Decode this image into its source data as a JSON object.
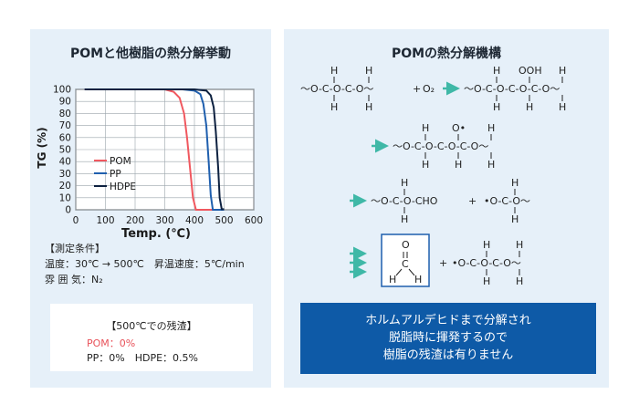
{
  "left": {
    "title": "POMと他樹脂の熱分解挙動",
    "conditions_header": "【測定条件】",
    "condition_temp": "温度：30℃ → 500℃　昇温速度：5℃/min",
    "condition_atm": "雰 囲 気：N₂",
    "residue": {
      "title": "【500℃での残渣】",
      "pom": "POM：0%",
      "others": "PP：0%　HDPE：0.5%"
    }
  },
  "chart_data": {
    "type": "line",
    "xlabel": "Temp. (℃)",
    "ylabel": "TG (%)",
    "xlim": [
      0,
      600
    ],
    "ylim": [
      0,
      100
    ],
    "x_ticks": [
      "0",
      "100",
      "200",
      "300",
      "400",
      "500",
      "600"
    ],
    "y_ticks": [
      "0",
      "10",
      "20",
      "30",
      "40",
      "50",
      "60",
      "70",
      "80",
      "90",
      "100"
    ],
    "grid": true,
    "legend_position": "center-left",
    "series": [
      {
        "name": "POM",
        "color": "#f0585f",
        "x": [
          30,
          300,
          330,
          350,
          365,
          375,
          385,
          395,
          405,
          500
        ],
        "y": [
          100,
          100,
          98,
          93,
          80,
          60,
          35,
          10,
          0,
          0
        ]
      },
      {
        "name": "PP",
        "color": "#1f5fae",
        "x": [
          30,
          360,
          400,
          420,
          430,
          440,
          448,
          455,
          462,
          500
        ],
        "y": [
          100,
          100,
          99,
          96,
          88,
          70,
          40,
          12,
          0,
          0
        ]
      },
      {
        "name": "HDPE",
        "color": "#0d2140",
        "x": [
          30,
          400,
          440,
          455,
          465,
          472,
          480,
          485,
          492,
          500
        ],
        "y": [
          100,
          100,
          99,
          95,
          85,
          65,
          35,
          10,
          0.5,
          0.5
        ]
      }
    ]
  },
  "right": {
    "title": "POMの熱分解機構",
    "row1_left": "〜O-C-O-C-O〜",
    "row1_plus": "+",
    "row1_o2": "O₂",
    "row1_right": "〜O-C-O-C-O-C-O〜",
    "h": "H",
    "ooh": "OOH",
    "row2": "〜O-C-O-C-O-C-O〜",
    "o_dot": "O•",
    "row3_left": "〜O-C-O-CHO",
    "row3_plus": "+",
    "row3_right": "•O-C-O〜",
    "row4_plus": "+",
    "row4_right": "•O-C-O-C-O〜",
    "formaldehyde": {
      "o": "O",
      "c": "C",
      "h": "H"
    },
    "conclusion": [
      "ホルムアルデヒドまで分解され",
      "脱脂時に揮発するので",
      "樹脂の残渣は有りません"
    ]
  }
}
